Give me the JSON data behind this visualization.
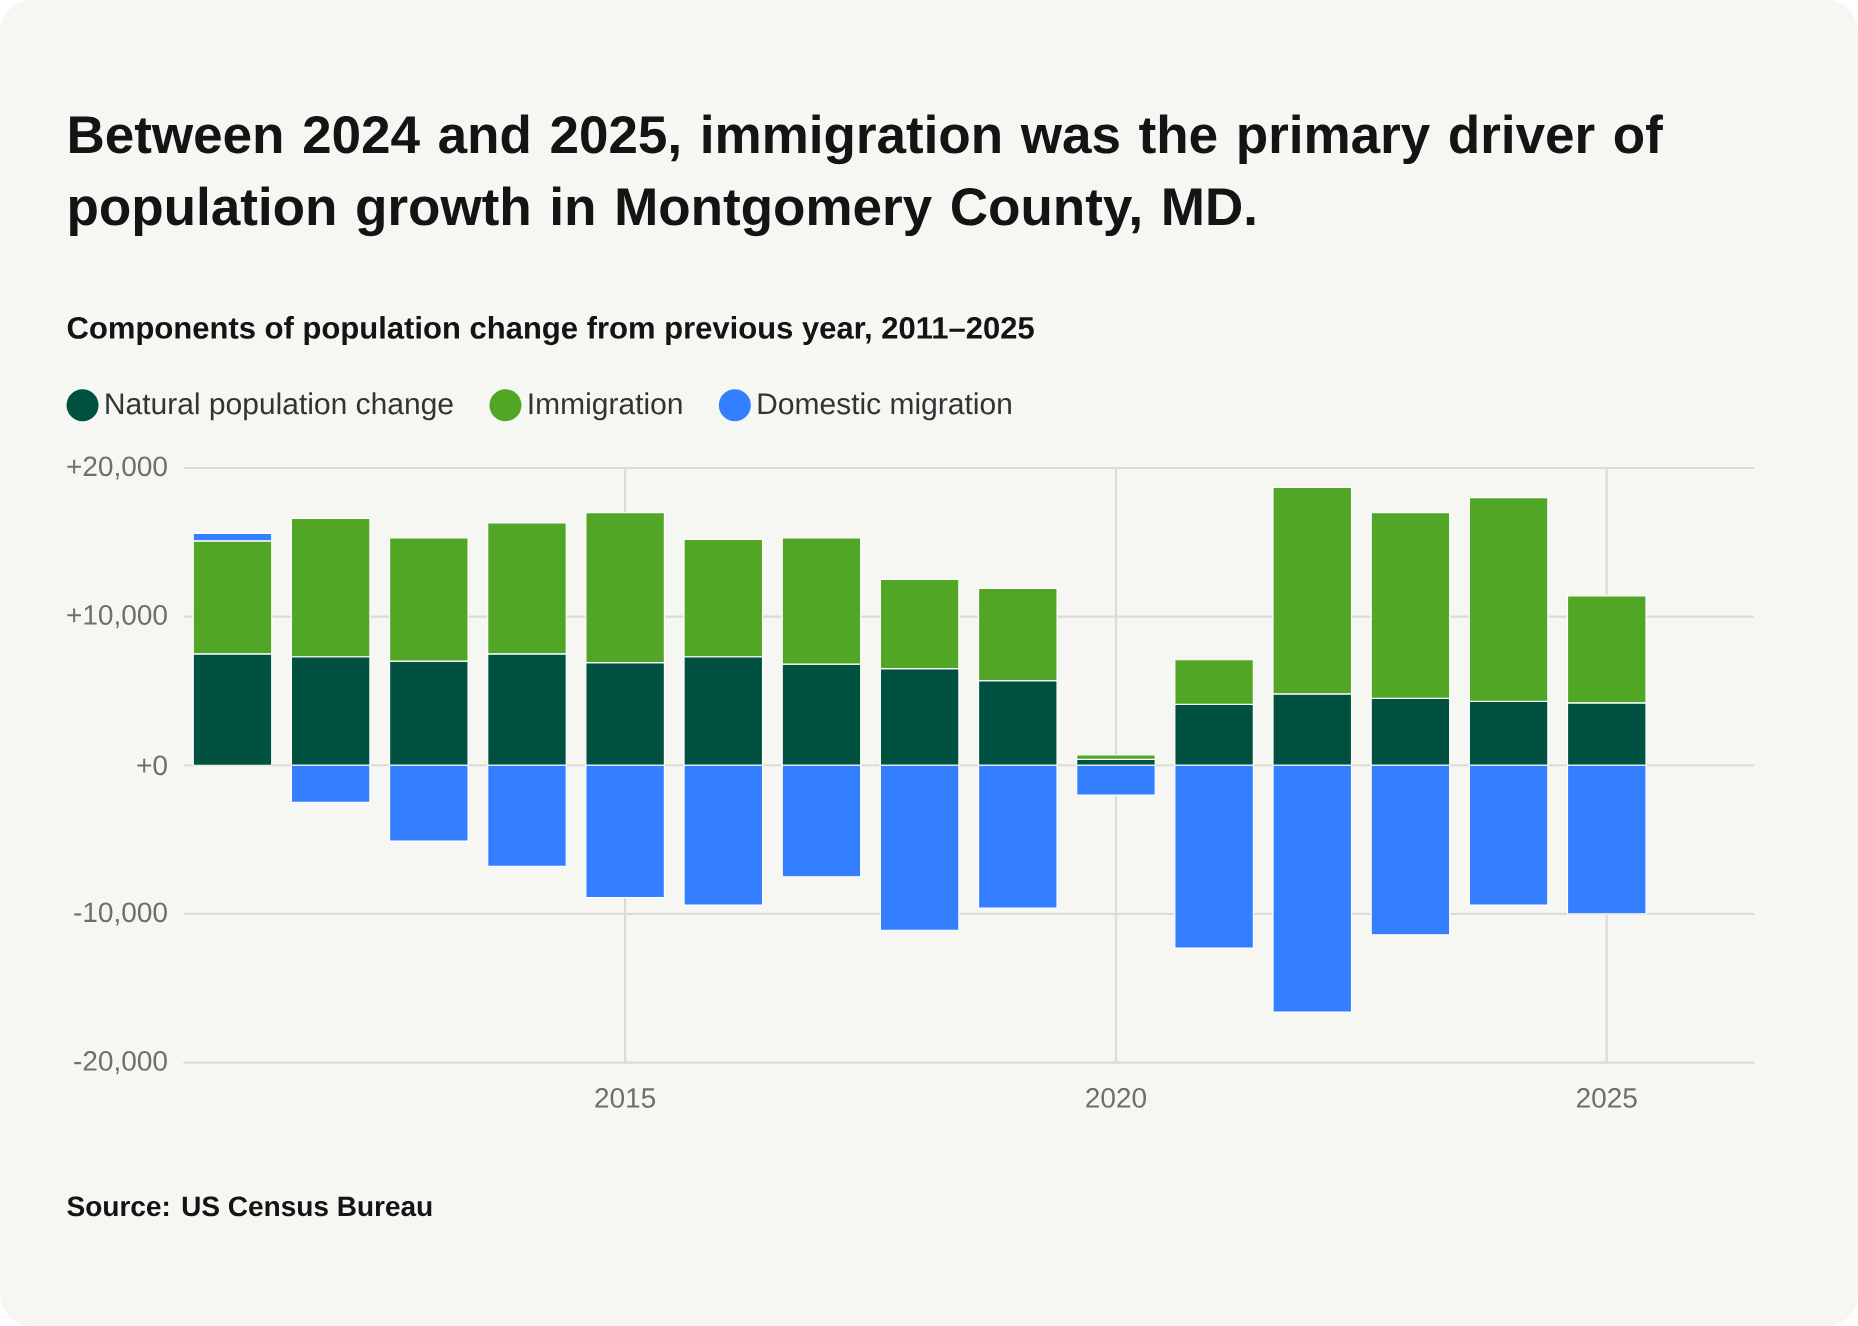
{
  "chart_data": {
    "type": "bar",
    "stacked": true,
    "title": "Between 2024 and 2025, immigration was the primary driver of population growth in Montgomery County, MD.",
    "subtitle": "Components of population change from previous year, 2011–2025",
    "x": [
      2011,
      2012,
      2013,
      2014,
      2015,
      2016,
      2017,
      2018,
      2019,
      2020,
      2021,
      2022,
      2023,
      2024,
      2025
    ],
    "xlim": [
      2010.5,
      2026.5
    ],
    "xticks": [
      2015,
      2020,
      2025
    ],
    "ylim": [
      -20000,
      20000
    ],
    "yticks": [
      {
        "value": -20000,
        "label": "-20,000"
      },
      {
        "value": -10000,
        "label": "-10,000"
      },
      {
        "value": 0,
        "label": "+0"
      },
      {
        "value": 10000,
        "label": "+10,000"
      },
      {
        "value": 20000,
        "label": "+20,000"
      }
    ],
    "grid": true,
    "legend": "top left",
    "series": [
      {
        "name": "Natural population change",
        "color": "#00513f",
        "values": [
          7500,
          7300,
          7000,
          7500,
          6900,
          7300,
          6800,
          6500,
          5700,
          400,
          4100,
          4800,
          4500,
          4300,
          4200
        ]
      },
      {
        "name": "Immigration",
        "color": "#51a725",
        "values": [
          7600,
          9300,
          8300,
          8800,
          10100,
          7900,
          8500,
          6000,
          6200,
          300,
          3000,
          13900,
          12500,
          13700,
          7200
        ]
      },
      {
        "name": "Domestic migration",
        "color": "#337fff",
        "values": [
          500,
          -2500,
          -5100,
          -6800,
          -8900,
          -9400,
          -7500,
          -11100,
          -9600,
          -2000,
          -12300,
          -16600,
          -11400,
          -9400,
          -10000
        ]
      }
    ],
    "annotations": [
      "Source: US Census Bureau"
    ]
  }
}
